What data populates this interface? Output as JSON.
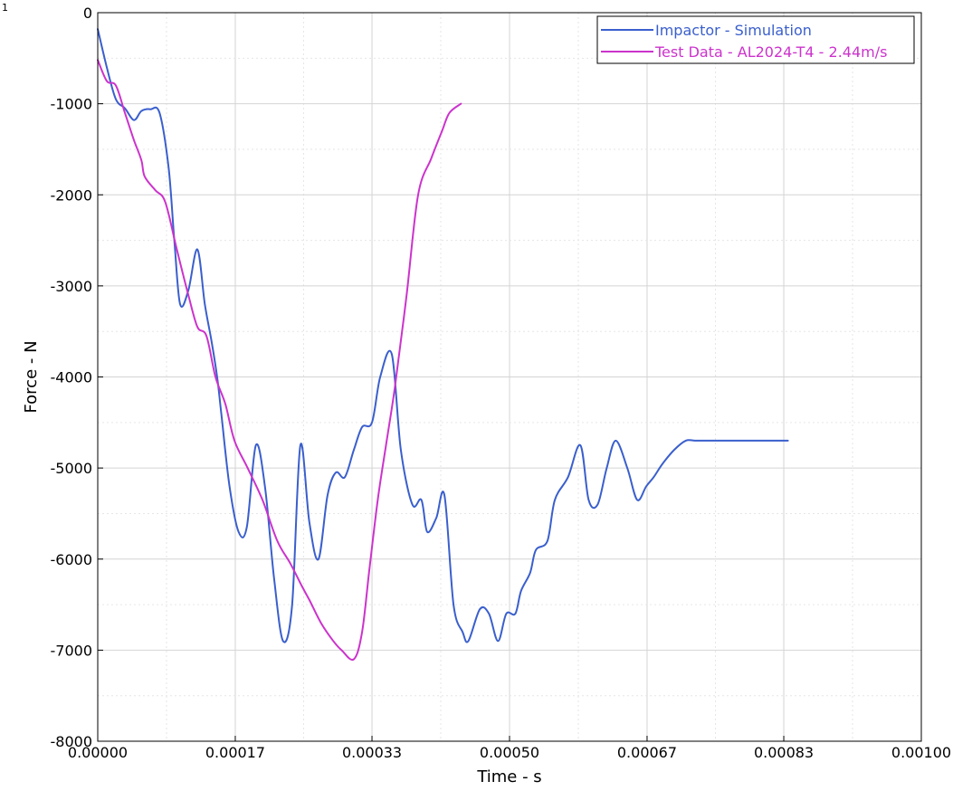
{
  "chart_data": {
    "type": "line",
    "corner_mark": "1",
    "xlabel": "Time - s",
    "ylabel": "Force - N",
    "xlim": [
      0,
      0.001
    ],
    "ylim": [
      -8000,
      0
    ],
    "x_ticks": [
      0,
      0.000167,
      0.000333,
      0.0005,
      0.000667,
      0.000833,
      0.001
    ],
    "x_tick_labels": [
      "0.00000",
      "0.00017",
      "0.00033",
      "0.00050",
      "0.00067",
      "0.00083",
      "0.00100"
    ],
    "y_ticks": [
      0,
      -1000,
      -2000,
      -3000,
      -4000,
      -5000,
      -6000,
      -7000,
      -8000
    ],
    "y_tick_labels": [
      "0",
      "-1000",
      "-2000",
      "-3000",
      "-4000",
      "-5000",
      "-6000",
      "-7000",
      "-8000"
    ],
    "grid": true,
    "minor_grid": true,
    "legend_position": "top-right",
    "series": [
      {
        "name": "Impactor - Simulation",
        "color": "#3a5fcd",
        "x": [
          0,
          1.1e-05,
          2.2e-05,
          3.3e-05,
          4.4e-05,
          5.3e-05,
          6.4e-05,
          7.5e-05,
          8.6e-05,
          9.3e-05,
          0.0001,
          0.00011,
          0.000121,
          0.00013,
          0.000138,
          0.000145,
          0.00015,
          0.00016,
          0.000171,
          0.000181,
          0.000192,
          0.000203,
          0.000214,
          0.000225,
          0.000236,
          0.000246,
          0.000257,
          0.000268,
          0.000279,
          0.000289,
          0.0003,
          0.000311,
          0.000321,
          0.000333,
          0.000343,
          0.000357,
          0.000368,
          0.000382,
          0.000393,
          0.0004,
          0.000411,
          0.000421,
          0.000432,
          0.000443,
          0.00045,
          0.000464,
          0.000475,
          0.000486,
          0.000496,
          0.000507,
          0.000514,
          0.000525,
          0.000532,
          0.000546,
          0.000555,
          0.000571,
          0.000586,
          0.000596,
          0.000607,
          0.000618,
          0.000629,
          0.000643,
          0.000655,
          0.000666,
          0.000675,
          0.000686,
          0.0007,
          0.000714,
          0.000725,
          0.000736,
          0.000745,
          0.000757,
          0.000768,
          0.000779,
          0.000789,
          0.0008,
          0.000813,
          0.000823,
          0.000838
        ],
        "values": [
          -180,
          -600,
          -950,
          -1050,
          -1180,
          -1080,
          -1060,
          -1100,
          -1700,
          -2500,
          -3200,
          -3050,
          -2600,
          -3200,
          -3600,
          -4000,
          -4400,
          -5200,
          -5700,
          -5650,
          -4750,
          -5200,
          -6200,
          -6900,
          -6500,
          -4750,
          -5600,
          -6000,
          -5300,
          -5050,
          -5100,
          -4800,
          -4550,
          -4500,
          -4000,
          -3750,
          -4800,
          -5400,
          -5350,
          -5700,
          -5550,
          -5300,
          -6500,
          -6800,
          -6900,
          -6550,
          -6600,
          -6900,
          -6600,
          -6600,
          -6350,
          -6150,
          -5900,
          -5800,
          -5350,
          -5100,
          -4750,
          -5350,
          -5400,
          -5000,
          -4700,
          -5000,
          -5350,
          -5200,
          -5100,
          -4950,
          -4800,
          -4700,
          -4700,
          -4700,
          -4700,
          -4700,
          -4700,
          -4700,
          -4700,
          -4700,
          -4700,
          -4700,
          -4700
        ]
      },
      {
        "name": "Test Data - AL2024-T4 - 2.44m/s",
        "color": "#cc33cc",
        "x": [
          0,
          1.1e-05,
          2.2e-05,
          3.3e-05,
          4.4e-05,
          5.3e-05,
          5.7e-05,
          7e-05,
          8.2e-05,
          9.6e-05,
          0.00011,
          0.000121,
          0.000132,
          0.000143,
          0.000155,
          0.000166,
          0.000182,
          0.0002,
          0.000218,
          0.000234,
          0.000248,
          0.000257,
          0.000271,
          0.000286,
          0.000296,
          0.000311,
          0.000321,
          0.00033,
          0.00034,
          0.00035,
          0.000361,
          0.000375,
          0.000389,
          0.000405,
          0.000418,
          0.000427,
          0.000441
        ],
        "values": [
          -520,
          -750,
          -800,
          -1100,
          -1400,
          -1620,
          -1800,
          -1950,
          -2080,
          -2600,
          -3100,
          -3450,
          -3550,
          -4000,
          -4300,
          -4700,
          -5000,
          -5350,
          -5800,
          -6050,
          -6300,
          -6450,
          -6700,
          -6900,
          -7000,
          -7100,
          -6800,
          -6100,
          -5350,
          -4750,
          -4100,
          -3100,
          -2000,
          -1600,
          -1300,
          -1100,
          -1000
        ]
      }
    ]
  }
}
